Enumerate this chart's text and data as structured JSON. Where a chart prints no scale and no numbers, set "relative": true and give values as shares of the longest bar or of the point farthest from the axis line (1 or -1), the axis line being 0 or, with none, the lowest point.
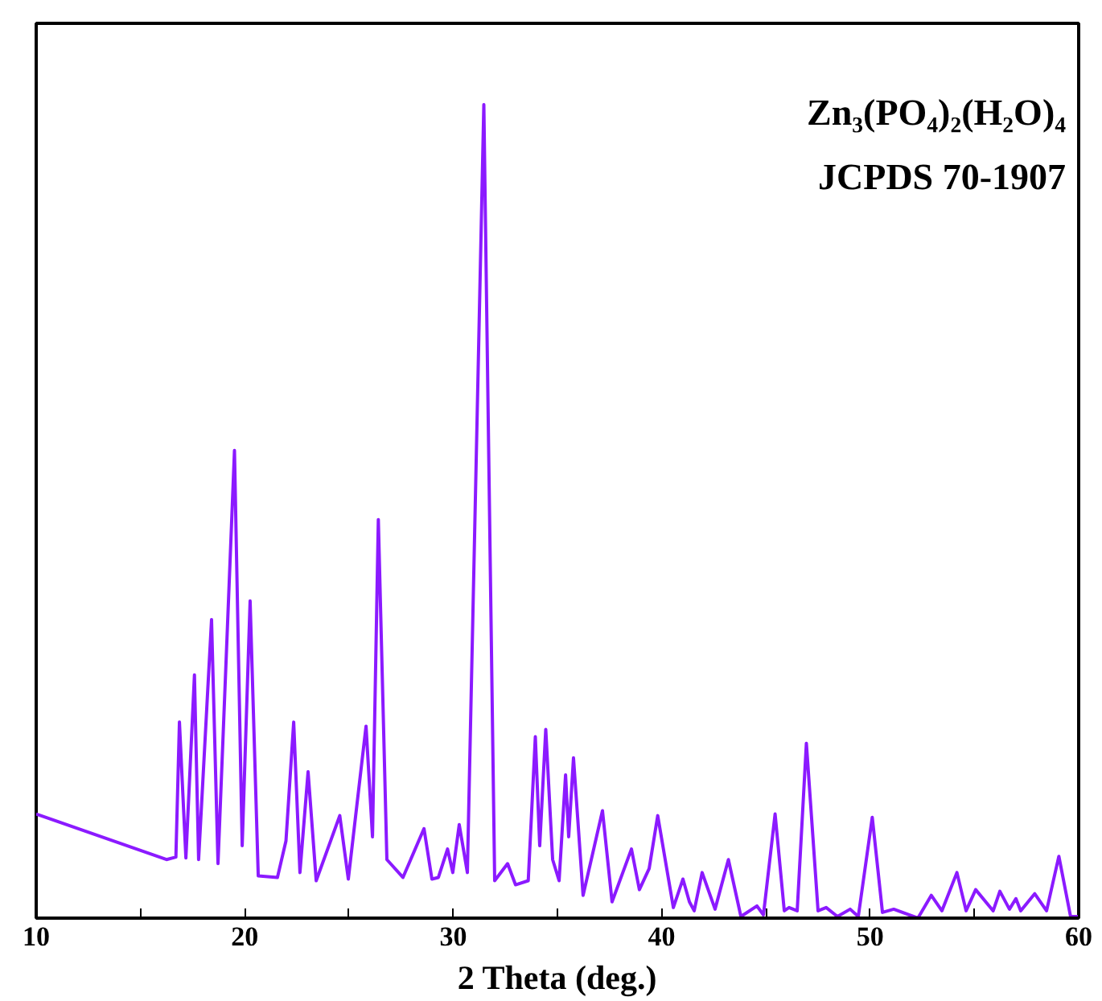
{
  "chart_data": {
    "type": "line",
    "relative": true,
    "xlabel": "2 Theta (deg.)",
    "annotations": [
      "Zn₃(PO₄)₂(H₂O)₄",
      "JCPDS 70-1907"
    ],
    "xlim": [
      10,
      60
    ],
    "xticks": [
      10,
      {
        "value": 15,
        "label": null
      },
      20,
      {
        "value": 25,
        "label": null
      },
      30,
      {
        "value": 35,
        "label": null
      },
      40,
      {
        "value": 45,
        "label": null
      },
      50,
      {
        "value": 55,
        "label": null
      },
      60
    ],
    "grid": false,
    "tick_labels": "x",
    "marker": "none",
    "line_style": "solid",
    "x": [
      10.0,
      16.25,
      16.7,
      16.87,
      17.18,
      17.59,
      17.79,
      18.41,
      18.72,
      19.51,
      19.88,
      20.26,
      20.65,
      21.57,
      21.98,
      22.35,
      22.65,
      23.04,
      23.43,
      24.56,
      24.97,
      25.82,
      26.13,
      26.41,
      26.82,
      27.59,
      28.6,
      28.98,
      29.29,
      29.73,
      29.98,
      30.29,
      30.68,
      31.47,
      31.99,
      32.61,
      32.99,
      33.6,
      33.94,
      34.15,
      34.44,
      34.77,
      35.08,
      35.39,
      35.54,
      35.77,
      36.23,
      37.16,
      37.62,
      38.55,
      38.93,
      39.4,
      39.81,
      40.56,
      41.02,
      41.33,
      41.56,
      41.94,
      42.56,
      43.2,
      43.8,
      44.57,
      44.88,
      45.44,
      45.88,
      46.11,
      46.5,
      46.94,
      47.5,
      47.89,
      48.43,
      49.04,
      49.43,
      50.1,
      50.59,
      51.13,
      52.29,
      52.93,
      53.44,
      54.16,
      54.6,
      55.06,
      55.9,
      56.22,
      56.68,
      56.99,
      57.22,
      57.89,
      58.46,
      59.05,
      59.61,
      60.0
    ],
    "series": [
      {
        "color": "#8b1aff",
        "values": [
          0.128,
          0.072,
          0.075,
          0.241,
          0.074,
          0.299,
          0.072,
          0.367,
          0.067,
          0.575,
          0.089,
          0.39,
          0.052,
          0.05,
          0.095,
          0.241,
          0.056,
          0.18,
          0.046,
          0.126,
          0.048,
          0.236,
          0.1,
          0.49,
          0.072,
          0.05,
          0.11,
          0.048,
          0.05,
          0.085,
          0.056,
          0.115,
          0.056,
          1.0,
          0.046,
          0.067,
          0.041,
          0.046,
          0.223,
          0.089,
          0.232,
          0.072,
          0.046,
          0.176,
          0.1,
          0.197,
          0.028,
          0.132,
          0.02,
          0.085,
          0.035,
          0.061,
          0.126,
          0.013,
          0.048,
          0.02,
          0.009,
          0.056,
          0.011,
          0.072,
          0.002,
          0.015,
          0.004,
          0.128,
          0.009,
          0.013,
          0.009,
          0.215,
          0.009,
          0.013,
          0.002,
          0.011,
          0.002,
          0.124,
          0.007,
          0.011,
          0.0,
          0.028,
          0.009,
          0.056,
          0.009,
          0.035,
          0.009,
          0.033,
          0.011,
          0.024,
          0.009,
          0.03,
          0.009,
          0.076,
          0.002,
          0.002
        ]
      }
    ]
  }
}
